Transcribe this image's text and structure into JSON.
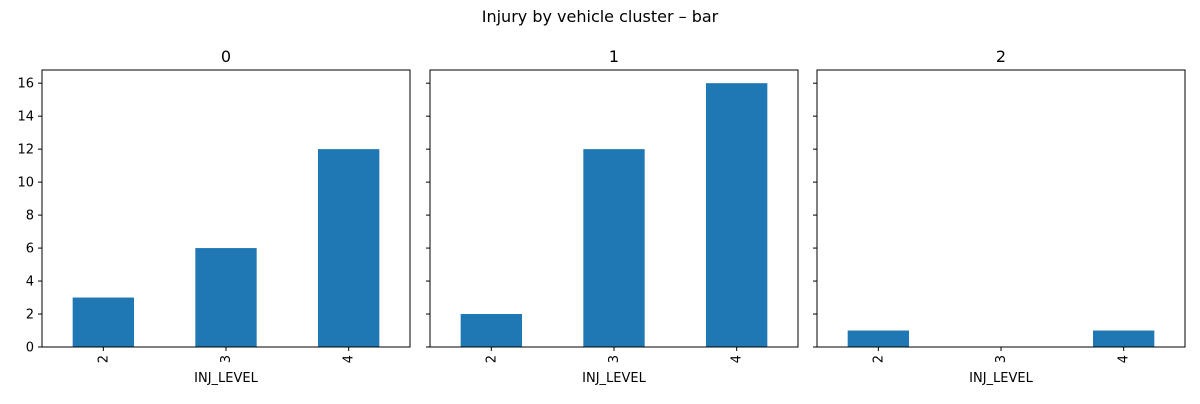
{
  "chart_data": {
    "type": "bar",
    "title": "Injury by vehicle cluster – bar",
    "xlabel": "INJ_LEVEL",
    "ylabel": "",
    "categories": [
      "2",
      "3",
      "4"
    ],
    "ylim": [
      0,
      16.8
    ],
    "yticks": [
      0,
      2,
      4,
      6,
      8,
      10,
      12,
      14,
      16
    ],
    "sharey": true,
    "bar_color": "#1f77b4",
    "grid": false,
    "legend": "none",
    "panels": [
      {
        "title": "0",
        "values": [
          3,
          6,
          12
        ]
      },
      {
        "title": "1",
        "values": [
          2,
          12,
          16
        ]
      },
      {
        "title": "2",
        "values": [
          1,
          0,
          1
        ]
      }
    ]
  }
}
